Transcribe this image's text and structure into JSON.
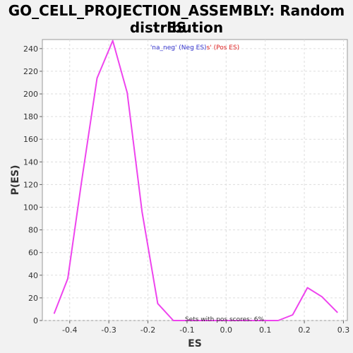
{
  "chart_data": {
    "type": "line",
    "title_line1": "GO_CELL_PROJECTION_ASSEMBLY: Random ES",
    "title_line2": "distribution",
    "xlabel": "ES",
    "ylabel": "P(ES)",
    "xlim": [
      -0.47,
      0.31
    ],
    "ylim": [
      0,
      248
    ],
    "x_ticks": [
      -0.4,
      -0.3,
      -0.2,
      -0.1,
      0.0,
      0.1,
      0.2,
      0.3
    ],
    "x_tick_labels": [
      "-0.4",
      "-0.3",
      "-0.2",
      "-0.1",
      "0.0",
      "0.1",
      "0.2",
      "0.3"
    ],
    "y_ticks": [
      0,
      20,
      40,
      60,
      80,
      100,
      120,
      140,
      160,
      180,
      200,
      220,
      240
    ],
    "y_tick_labels": [
      "0",
      "20",
      "40",
      "60",
      "80",
      "100",
      "120",
      "140",
      "160",
      "180",
      "200",
      "220",
      "240"
    ],
    "grid": true,
    "series": [
      {
        "color": "#ee44ee",
        "x": [
          -0.44,
          -0.405,
          -0.37,
          -0.33,
          -0.29,
          -0.253,
          -0.215,
          -0.175,
          -0.135,
          -0.1,
          -0.06,
          -0.02,
          0.02,
          0.06,
          0.095,
          0.133,
          0.17,
          0.208,
          0.245,
          0.285
        ],
        "y": [
          6,
          37,
          122,
          214,
          247,
          201,
          96,
          15,
          0,
          0,
          0,
          0,
          0,
          0,
          0,
          0,
          5,
          29,
          21,
          7
        ]
      }
    ],
    "legend": {
      "position": "top-center",
      "neg_text": "'na_neg' (Neg ES)",
      "pos_text": "s' (Pos ES)",
      "neg_color": "#3333cc",
      "pos_color": "#dd2222"
    },
    "annotation": "Sets with pos scores: 6%"
  }
}
